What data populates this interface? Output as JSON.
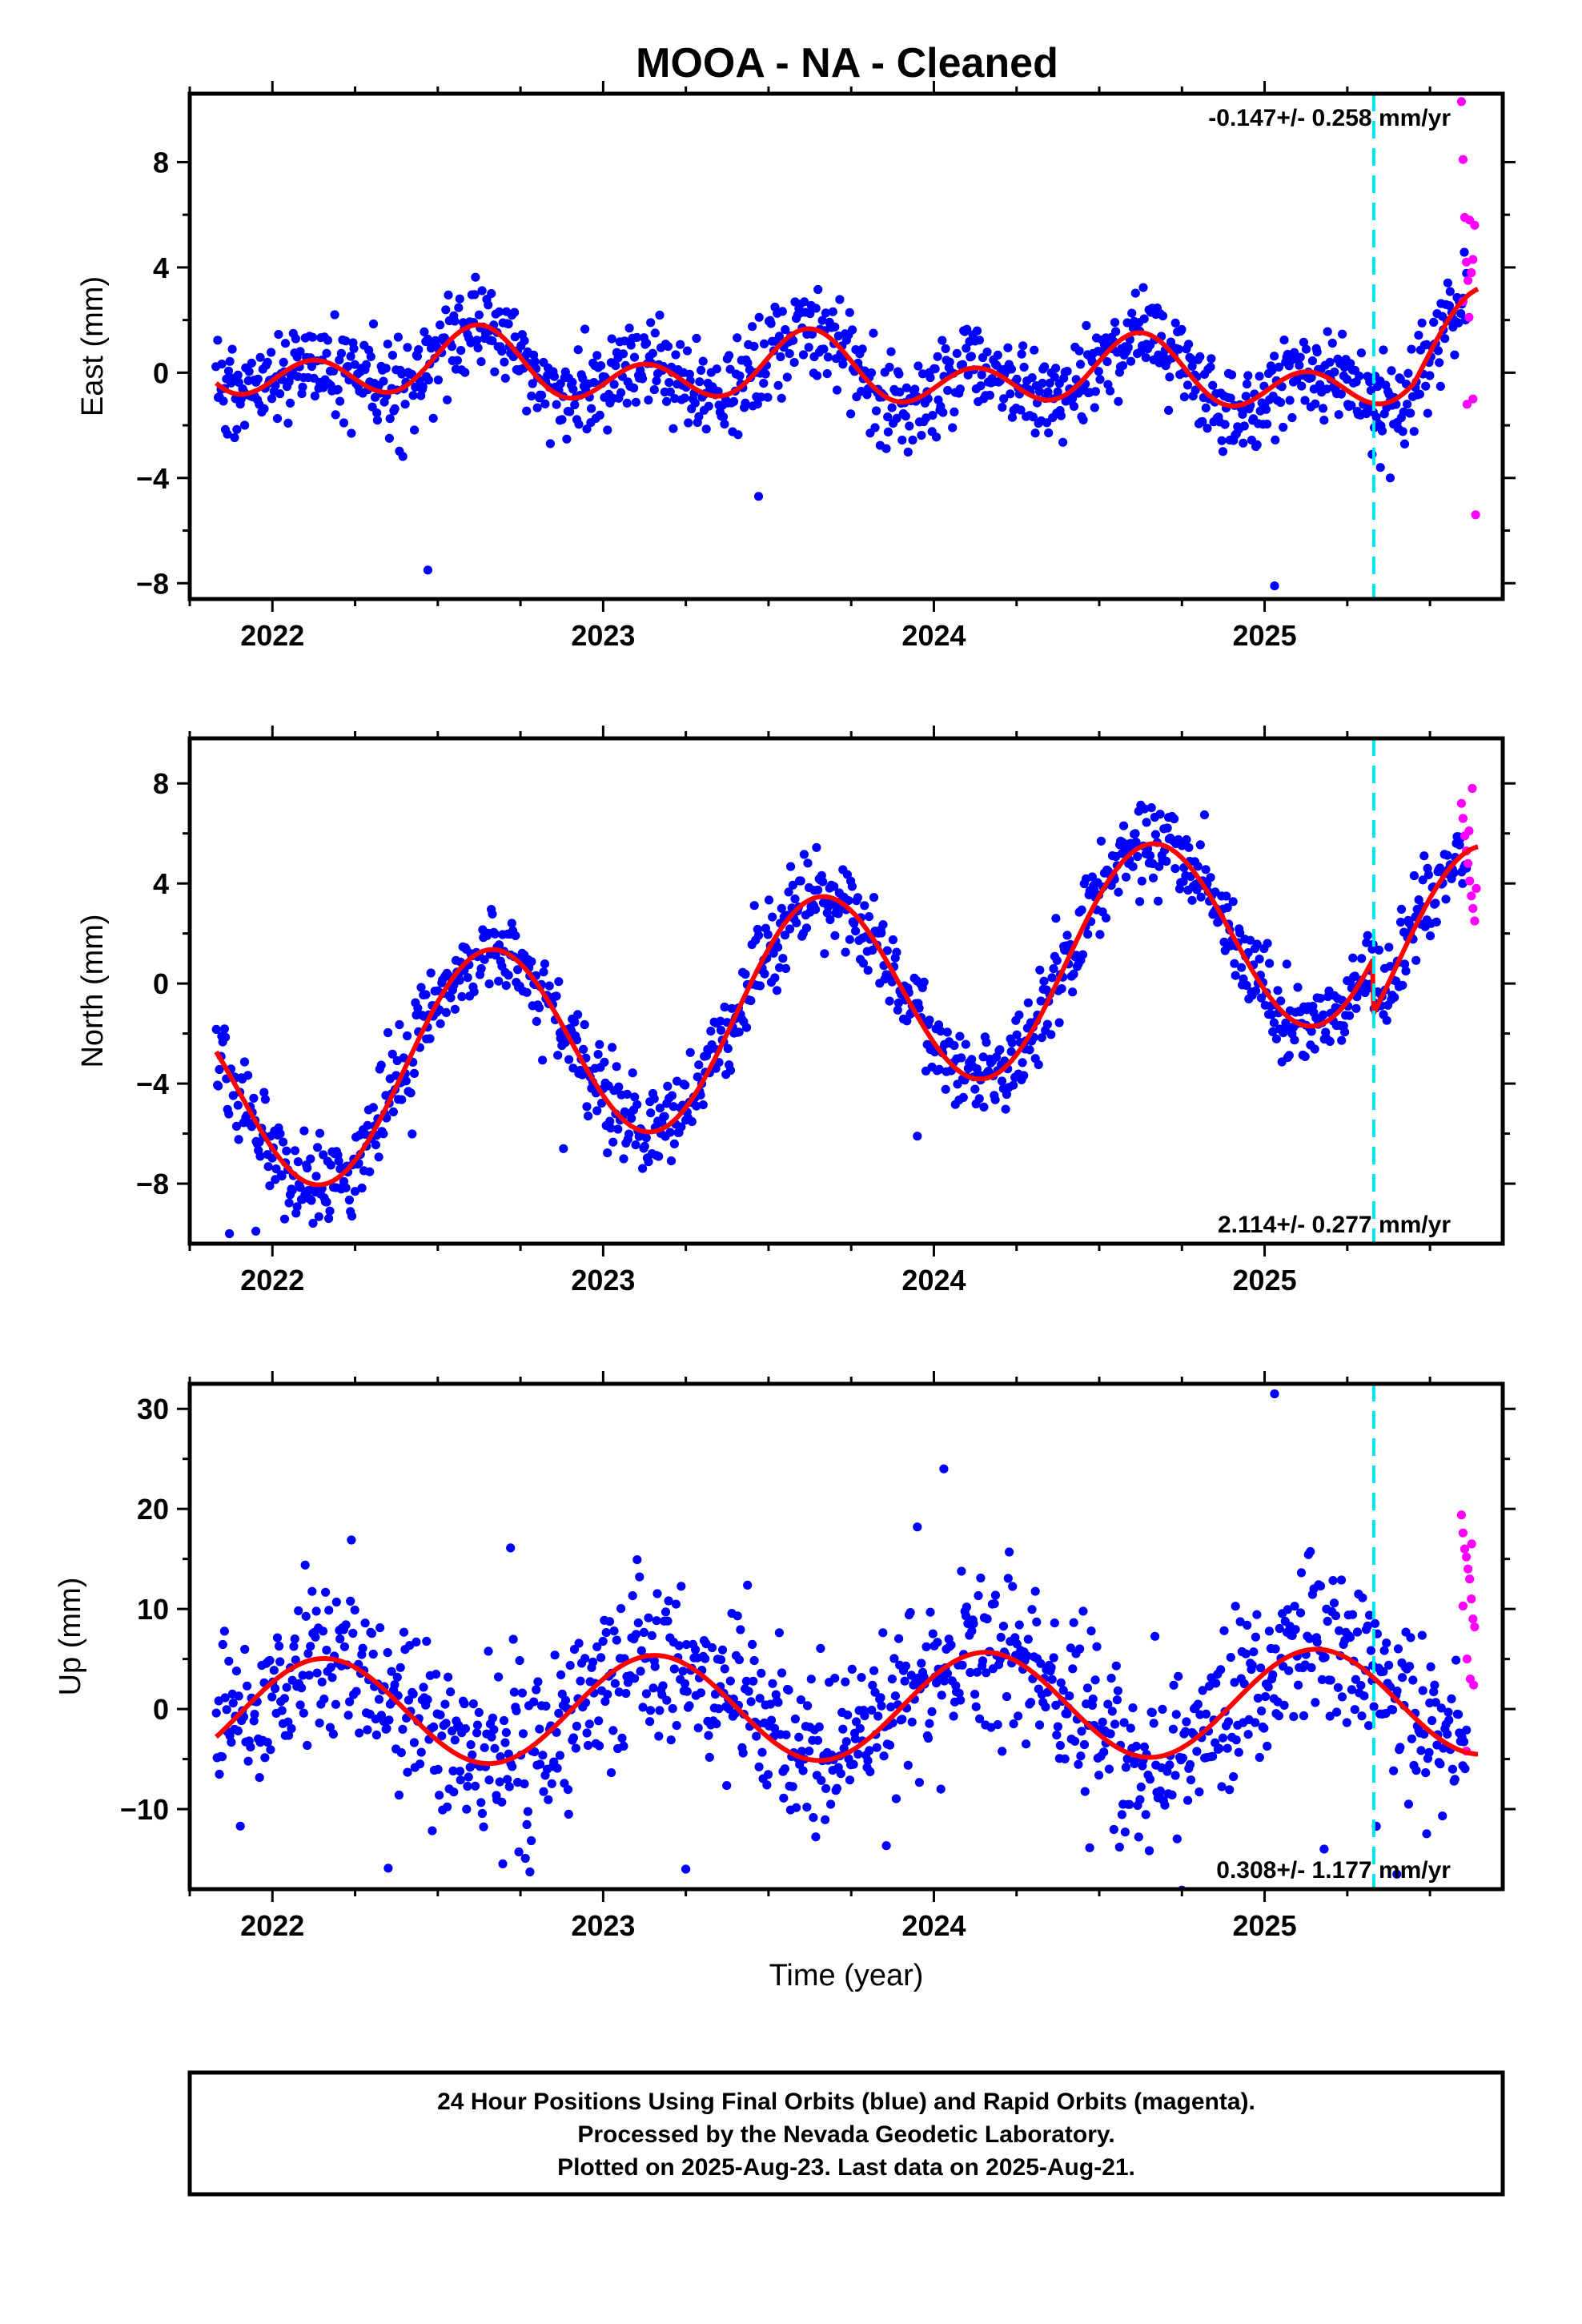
{
  "title": "MOOA  - NA - Cleaned",
  "footer": {
    "line1": "24 Hour Positions Using Final Orbits (blue) and Rapid Orbits (magenta).",
    "line2": "Processed by the Nevada Geodetic Laboratory.",
    "line3": "Plotted on 2025-Aug-23. Last data on 2025-Aug-21."
  },
  "colors": {
    "final_orbits": "#0000ff",
    "rapid_orbits": "#ff00ff",
    "model_fit": "#ff0000",
    "equipment_change": "#00e5ee"
  },
  "chart_data": [
    {
      "type": "scatter",
      "panel": "east",
      "ylabel": "East (mm)",
      "xlabel": "",
      "xlim": [
        2021.75,
        2025.72
      ],
      "ylim": [
        -8.6,
        10.6
      ],
      "xticks": [
        2022,
        2023,
        2024,
        2025
      ],
      "yticks": [
        -8,
        -4,
        0,
        4,
        8
      ],
      "rate_text": "-0.147+/- 0.258 mm/yr",
      "rate_position": "top-right",
      "equipment_change_x": 2025.33,
      "model": {
        "offset": 0.0,
        "rate": -0.147,
        "ref": 2023.7,
        "annual_sin": -0.45,
        "annual_cos": -0.55,
        "semiannual_sin": 0.95,
        "semiannual_cos": 0.0,
        "step_at": 2025.33,
        "step": 0.0,
        "post_ramp_rate": 9.5
      },
      "scatter_sigma": 0.9,
      "final_points_count": 1100,
      "final_x_range": [
        2021.83,
        2025.61
      ],
      "outliers": [
        {
          "x": 2022.47,
          "y": -7.5
        },
        {
          "x": 2025.03,
          "y": -8.1
        },
        {
          "x": 2023.47,
          "y": -4.7
        },
        {
          "x": 2025.35,
          "y": -3.6
        },
        {
          "x": 2025.38,
          "y": -4.0
        }
      ],
      "rapid_points": [
        {
          "x": 2025.595,
          "y": 10.3
        },
        {
          "x": 2025.6,
          "y": 8.1
        },
        {
          "x": 2025.605,
          "y": 5.9
        },
        {
          "x": 2025.61,
          "y": 4.2
        },
        {
          "x": 2025.615,
          "y": 3.5
        },
        {
          "x": 2025.62,
          "y": 5.8
        },
        {
          "x": 2025.625,
          "y": 3.8
        },
        {
          "x": 2025.63,
          "y": 4.3
        },
        {
          "x": 2025.635,
          "y": 5.6
        },
        {
          "x": 2025.6,
          "y": 2.7
        },
        {
          "x": 2025.612,
          "y": -1.2
        },
        {
          "x": 2025.63,
          "y": -1.0
        },
        {
          "x": 2025.638,
          "y": -5.4
        },
        {
          "x": 2025.618,
          "y": 2.1
        }
      ]
    },
    {
      "type": "scatter",
      "panel": "north",
      "ylabel": "North (mm)",
      "xlabel": "",
      "xlim": [
        2021.75,
        2025.72
      ],
      "ylim": [
        -10.4,
        9.8
      ],
      "xticks": [
        2022,
        2023,
        2024,
        2025
      ],
      "yticks": [
        -8,
        -4,
        0,
        4,
        8
      ],
      "rate_text": "2.114+/- 0.277 mm/yr",
      "rate_position": "bottom-right",
      "equipment_change_x": 2025.33,
      "model": {
        "offset": -0.6,
        "rate": 2.114,
        "ref": 2023.7,
        "annual_sin": -3.4,
        "annual_cos": -2.4,
        "semiannual_sin": 0.0,
        "semiannual_cos": 0.0,
        "step_at": 2025.33,
        "step": -2.2,
        "post_ramp_rate": 0.0
      },
      "scatter_sigma": 0.9,
      "final_points_count": 1100,
      "final_x_range": [
        2021.83,
        2025.61
      ],
      "outliers": [
        {
          "x": 2021.87,
          "y": -10.0
        },
        {
          "x": 2021.95,
          "y": -9.9
        },
        {
          "x": 2022.88,
          "y": -6.6
        },
        {
          "x": 2023.95,
          "y": -6.1
        }
      ],
      "rapid_points": [
        {
          "x": 2025.595,
          "y": 7.2
        },
        {
          "x": 2025.6,
          "y": 6.6
        },
        {
          "x": 2025.605,
          "y": 5.9
        },
        {
          "x": 2025.61,
          "y": 5.3
        },
        {
          "x": 2025.615,
          "y": 4.8
        },
        {
          "x": 2025.62,
          "y": 4.1
        },
        {
          "x": 2025.625,
          "y": 3.5
        },
        {
          "x": 2025.63,
          "y": 3.0
        },
        {
          "x": 2025.635,
          "y": 2.5
        },
        {
          "x": 2025.64,
          "y": 3.8
        },
        {
          "x": 2025.618,
          "y": 6.1
        },
        {
          "x": 2025.628,
          "y": 7.8
        }
      ]
    },
    {
      "type": "scatter",
      "panel": "up",
      "ylabel": "Up (mm)",
      "xlabel": "Time (year)",
      "xlim": [
        2021.75,
        2025.72
      ],
      "ylim": [
        -18,
        32.5
      ],
      "xticks": [
        2022,
        2023,
        2024,
        2025
      ],
      "yticks": [
        -10,
        0,
        10,
        20,
        30
      ],
      "rate_text": "0.308+/- 1.177 mm/yr",
      "rate_position": "bottom-right",
      "equipment_change_x": 2025.33,
      "model": {
        "offset": 0.2,
        "rate": 0.308,
        "ref": 2023.7,
        "annual_sin": 4.4,
        "annual_cos": 3.0,
        "semiannual_sin": 0.0,
        "semiannual_cos": 0.0,
        "step_at": 2025.33,
        "step": 0.0,
        "post_ramp_rate": 0.0
      },
      "scatter_sigma": 4.2,
      "final_points_count": 1100,
      "final_x_range": [
        2021.83,
        2025.61
      ],
      "outliers": [
        {
          "x": 2025.03,
          "y": 31.5
        },
        {
          "x": 2024.03,
          "y": 24.0
        },
        {
          "x": 2023.95,
          "y": 18.2
        },
        {
          "x": 2022.72,
          "y": 16.1
        },
        {
          "x": 2022.35,
          "y": -15.9
        },
        {
          "x": 2023.25,
          "y": -16.0
        },
        {
          "x": 2025.4,
          "y": -16.5
        },
        {
          "x": 2025.18,
          "y": -14.0
        }
      ],
      "rapid_points": [
        {
          "x": 2025.595,
          "y": 19.4
        },
        {
          "x": 2025.6,
          "y": 17.6
        },
        {
          "x": 2025.605,
          "y": 16.0
        },
        {
          "x": 2025.61,
          "y": 15.2
        },
        {
          "x": 2025.615,
          "y": 14.0
        },
        {
          "x": 2025.62,
          "y": 13.0
        },
        {
          "x": 2025.625,
          "y": 11.0
        },
        {
          "x": 2025.63,
          "y": 9.0
        },
        {
          "x": 2025.635,
          "y": 8.2
        },
        {
          "x": 2025.6,
          "y": 10.3
        },
        {
          "x": 2025.612,
          "y": 5.0
        },
        {
          "x": 2025.622,
          "y": 3.0
        },
        {
          "x": 2025.632,
          "y": 2.4
        },
        {
          "x": 2025.61,
          "y": -4.2
        },
        {
          "x": 2025.626,
          "y": 16.5
        }
      ]
    }
  ]
}
